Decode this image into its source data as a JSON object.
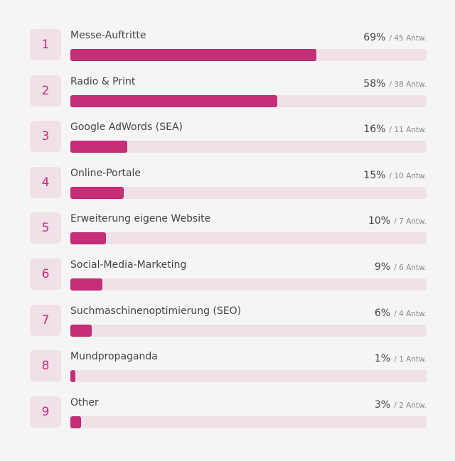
{
  "colors": {
    "accent": "#c62f77",
    "track": "#f0e1e9",
    "background": "#f5f5f5"
  },
  "items": [
    {
      "rank": "1",
      "label": "Messe-Auftritte",
      "percent_label": "69%",
      "count_label": "/ 45 Antw.",
      "percent": 69
    },
    {
      "rank": "2",
      "label": "Radio & Print",
      "percent_label": "58%",
      "count_label": "/ 38 Antw.",
      "percent": 58
    },
    {
      "rank": "3",
      "label": "Google AdWords (SEA)",
      "percent_label": "16%",
      "count_label": "/ 11 Antw.",
      "percent": 16
    },
    {
      "rank": "4",
      "label": "Online-Portale",
      "percent_label": "15%",
      "count_label": "/ 10 Antw.",
      "percent": 15
    },
    {
      "rank": "5",
      "label": "Erweiterung eigene Website",
      "percent_label": "10%",
      "count_label": "/ 7 Antw.",
      "percent": 10
    },
    {
      "rank": "6",
      "label": "Social-Media-Marketing",
      "percent_label": "9%",
      "count_label": "/ 6 Antw.",
      "percent": 9
    },
    {
      "rank": "7",
      "label": "Suchmaschinenoptimierung (SEO)",
      "percent_label": "6%",
      "count_label": "/ 4 Antw.",
      "percent": 6
    },
    {
      "rank": "8",
      "label": "Mundpropaganda",
      "percent_label": "1%",
      "count_label": "/ 1 Antw.",
      "percent": 1
    },
    {
      "rank": "9",
      "label": "Other",
      "percent_label": "3%",
      "count_label": "/ 2 Antw.",
      "percent": 3
    }
  ]
}
